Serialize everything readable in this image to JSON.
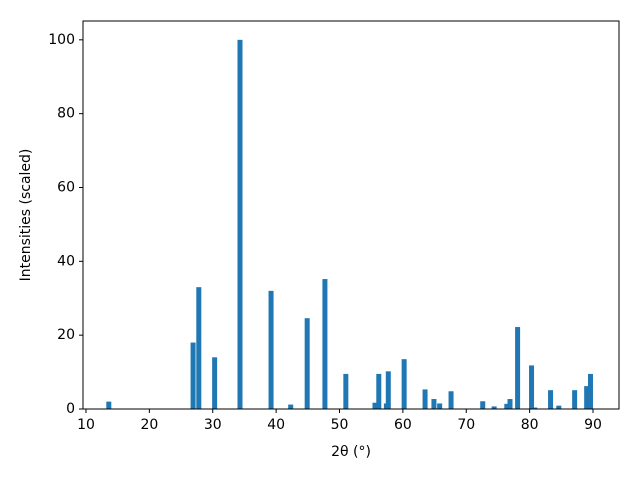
{
  "chart_data": {
    "type": "bar",
    "x_label": "2θ (°)",
    "y_label": "Intensities (scaled)",
    "color": "#1f77b4",
    "x": [
      13.6,
      26.9,
      27.8,
      30.3,
      34.3,
      39.2,
      42.3,
      44.9,
      47.7,
      51.0,
      55.6,
      56.2,
      57.4,
      57.7,
      60.2,
      63.5,
      64.9,
      65.8,
      67.6,
      72.6,
      74.4,
      76.4,
      76.9,
      78.1,
      80.3,
      80.8,
      83.3,
      84.6,
      87.1,
      89.0,
      89.6
    ],
    "values": [
      2,
      18,
      33,
      14,
      100,
      32,
      1.2,
      24.6,
      35.2,
      9.5,
      1.7,
      9.5,
      1.5,
      10.2,
      13.5,
      5.3,
      2.7,
      1.5,
      4.8,
      2.1,
      0.7,
      1.4,
      2.7,
      22.2,
      11.8,
      0.4,
      5.1,
      0.9,
      5.1,
      6.2,
      9.5
    ],
    "xlim": [
      9.53,
      94.1
    ],
    "ylim": [
      0,
      105.1
    ],
    "xticks": [
      10,
      20,
      30,
      40,
      50,
      60,
      70,
      80,
      90
    ],
    "yticks": [
      0,
      20,
      40,
      60,
      80,
      100
    ]
  }
}
